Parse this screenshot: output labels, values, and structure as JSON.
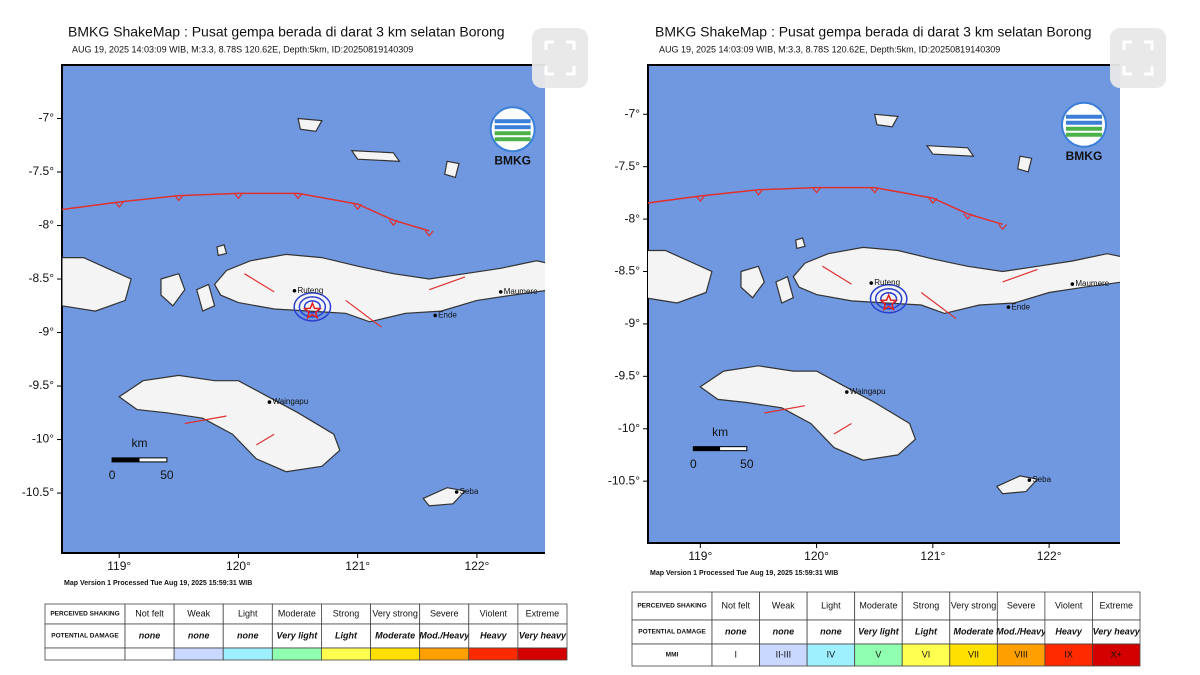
{
  "panels": [
    {
      "title": "BMKG ShakeMap : Pusat gempa berada di darat 3 km selatan Borong",
      "subtitle": "AUG 19, 2025 14:03:09 WIB, M:3.3, 8.78S 120.62E, Depth:5km, ID:20250819140309",
      "lat_labels": [
        "-7°",
        "-7.5°",
        "-8°",
        "-8.5°",
        "-9°",
        "-9.5°",
        "-10°",
        "-10.5°"
      ],
      "lon_labels": [
        "119°",
        "120°",
        "121°",
        "122°"
      ],
      "logo_text": "BMKG",
      "scale_unit": "km",
      "scale_ticks": [
        "0",
        "50"
      ],
      "places": [
        "Ruteng",
        "Waingapu",
        "Maumere",
        "Ende",
        "Seba"
      ],
      "footer": "Map Version 1 Processed Tue Aug 19, 2025 15:59:31 WIB",
      "legend": [
        {
          "header": "PERCEIVED SHAKING",
          "cells": [
            "Not felt",
            "Weak",
            "Light",
            "Moderate",
            "Strong",
            "Very strong",
            "Severe",
            "Violent",
            "Extreme"
          ]
        },
        {
          "header": "POTENTIAL DAMAGE",
          "cells": [
            "none",
            "none",
            "none",
            "Very light",
            "Light",
            "Moderate",
            "Mod./Heavy",
            "Heavy",
            "Very heavy"
          ]
        }
      ]
    },
    {
      "title": "BMKG ShakeMap : Pusat gempa berada di darat 3 km selatan Borong",
      "subtitle": "AUG 19, 2025 14:03:09 WIB, M:3.3, 8.78S 120.62E, Depth:5km, ID:20250819140309",
      "lat_labels": [
        "-7°",
        "-7.5°",
        "-8°",
        "-8.5°",
        "-9°",
        "-9.5°",
        "-10°",
        "-10.5°"
      ],
      "lon_labels": [
        "119°",
        "120°",
        "121°",
        "122°"
      ],
      "logo_text": "BMKG",
      "scale_unit": "km",
      "scale_ticks": [
        "0",
        "50"
      ],
      "places": [
        "Ruteng",
        "Waingapu",
        "Maumere",
        "Ende",
        "Seba"
      ],
      "footer": "Map Version 1 Processed Tue Aug 19, 2025 15:59:31 WIB",
      "legend": [
        {
          "header": "PERCEIVED SHAKING",
          "cells": [
            "Not felt",
            "Weak",
            "Light",
            "Moderate",
            "Strong",
            "Very strong",
            "Severe",
            "Violent",
            "Extreme"
          ]
        },
        {
          "header": "POTENTIAL DAMAGE",
          "cells": [
            "none",
            "none",
            "none",
            "Very light",
            "Light",
            "Moderate",
            "Mod./Heavy",
            "Heavy",
            "Very heavy"
          ]
        },
        {
          "header": "MMI",
          "cells": [
            "I",
            "II-III",
            "IV",
            "V",
            "VI",
            "VII",
            "VIII",
            "IX",
            "X+"
          ]
        }
      ]
    }
  ],
  "mmi_colors": [
    "#ffffff",
    "#c8d8ff",
    "#9ff0ff",
    "#90ffb0",
    "#ffff50",
    "#ffe000",
    "#ffa000",
    "#ff2a00",
    "#d40000"
  ]
}
